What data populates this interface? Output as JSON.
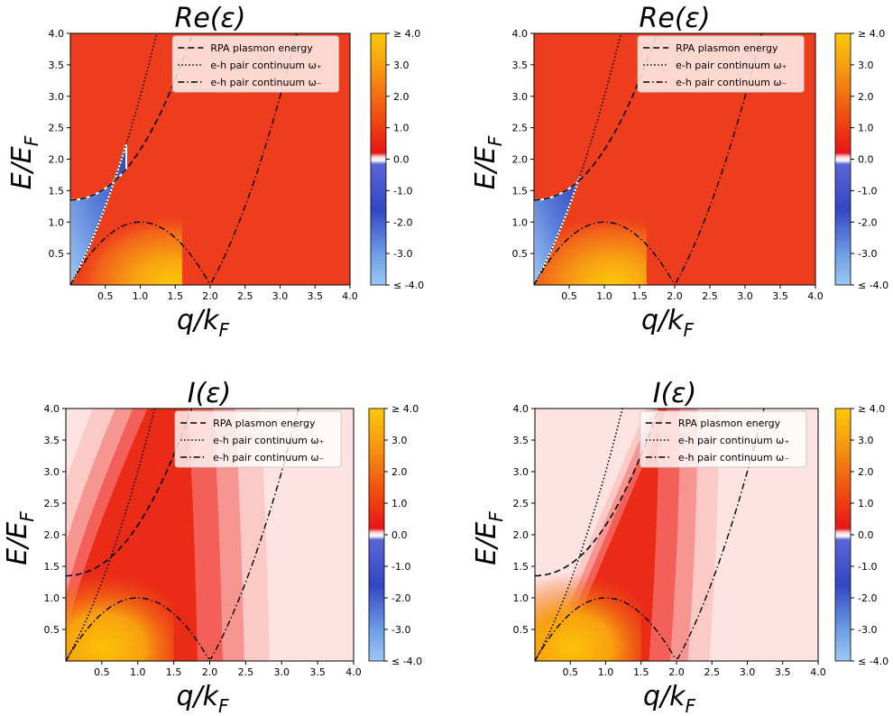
{
  "chart_data": [
    {
      "type": "heatmap",
      "title": "Re(ε)",
      "xlabel": "q/k_F",
      "ylabel": "E/E_F",
      "xlim": [
        0,
        4
      ],
      "ylim": [
        0,
        4
      ],
      "xticks": [
        "0.5",
        "1.0",
        "1.5",
        "2.0",
        "2.5",
        "3.0",
        "3.5",
        "4.0"
      ],
      "yticks": [
        "0.5",
        "1.0",
        "1.5",
        "2.0",
        "2.5",
        "3.0",
        "3.5",
        "4.0"
      ],
      "legend_position": "top-right",
      "series": [
        {
          "name": "RPA plasmon energy",
          "style": "dashed",
          "omega0": 1.35
        },
        {
          "name": "e-h pair continuum ω₊",
          "style": "dotted"
        },
        {
          "name": "e-h pair continuum ω₋",
          "style": "dashdot"
        }
      ],
      "colorbar": {
        "ticks": [
          "≥ 4.0",
          "3.0",
          "2.0",
          "1.0",
          "0.0",
          "-1.0",
          "-2.0",
          "-3.0",
          "≤ -4.0"
        ],
        "range": [
          -4,
          4
        ]
      }
    },
    {
      "type": "heatmap",
      "title": "Re(ε)",
      "xlabel": "q/k_F",
      "ylabel": "E/E_F",
      "xlim": [
        0,
        4
      ],
      "ylim": [
        0,
        4
      ],
      "xticks": [
        "0.5",
        "1.0",
        "1.5",
        "2.0",
        "2.5",
        "3.0",
        "3.5",
        "4.0"
      ],
      "yticks": [
        "0.5",
        "1.0",
        "1.5",
        "2.0",
        "2.5",
        "3.0",
        "3.5",
        "4.0"
      ],
      "legend_position": "top-right",
      "series": [
        {
          "name": "RPA plasmon energy",
          "style": "dashed",
          "omega0": 1.35
        },
        {
          "name": "e-h pair continuum ω₊",
          "style": "dotted"
        },
        {
          "name": "e-h pair continuum ω₋",
          "style": "dashdot"
        }
      ],
      "colorbar": {
        "ticks": [
          "≥ 4.0",
          "3.0",
          "2.0",
          "1.0",
          "0.0",
          "-1.0",
          "-2.0",
          "-3.0",
          "≤ -4.0"
        ],
        "range": [
          -4,
          4
        ]
      }
    },
    {
      "type": "heatmap",
      "title": "I(ε)",
      "xlabel": "q/k_F",
      "ylabel": "E/E_F",
      "xlim": [
        0,
        4
      ],
      "ylim": [
        0,
        4
      ],
      "xticks": [
        "0.5",
        "1.0",
        "1.5",
        "2.0",
        "2.5",
        "3.0",
        "3.5",
        "4.0"
      ],
      "yticks": [
        "0.5",
        "1.0",
        "1.5",
        "2.0",
        "2.5",
        "3.0",
        "3.5",
        "4.0"
      ],
      "legend_position": "top-right",
      "series": [
        {
          "name": "RPA plasmon energy",
          "style": "dashed",
          "omega0": 1.35
        },
        {
          "name": "e-h pair continuum ω₊",
          "style": "dotted"
        },
        {
          "name": "e-h pair continuum ω₋",
          "style": "dashdot"
        }
      ],
      "colorbar": {
        "ticks": [
          "≥ 4.0",
          "3.0",
          "2.0",
          "1.0",
          "0.0",
          "-1.0",
          "-2.0",
          "-3.0",
          "≤ -4.0"
        ],
        "range": [
          -4,
          4
        ]
      }
    },
    {
      "type": "heatmap",
      "title": "I(ε)",
      "xlabel": "q/k_F",
      "ylabel": "E/E_F",
      "xlim": [
        0,
        4
      ],
      "ylim": [
        0,
        4
      ],
      "xticks": [
        "0.5",
        "1.0",
        "1.5",
        "2.0",
        "2.5",
        "3.0",
        "3.5",
        "4.0"
      ],
      "yticks": [
        "0.5",
        "1.0",
        "1.5",
        "2.0",
        "2.5",
        "3.0",
        "3.5",
        "4.0"
      ],
      "legend_position": "top-right",
      "series": [
        {
          "name": "RPA plasmon energy",
          "style": "dashed",
          "omega0": 1.35
        },
        {
          "name": "e-h pair continuum ω₊",
          "style": "dotted"
        },
        {
          "name": "e-h pair continuum ω₋",
          "style": "dashdot"
        }
      ],
      "colorbar": {
        "ticks": [
          "≥ 4.0",
          "3.0",
          "2.0",
          "1.0",
          "0.0",
          "-1.0",
          "-2.0",
          "-3.0",
          "≤ -4.0"
        ],
        "range": [
          -4,
          4
        ]
      }
    }
  ]
}
